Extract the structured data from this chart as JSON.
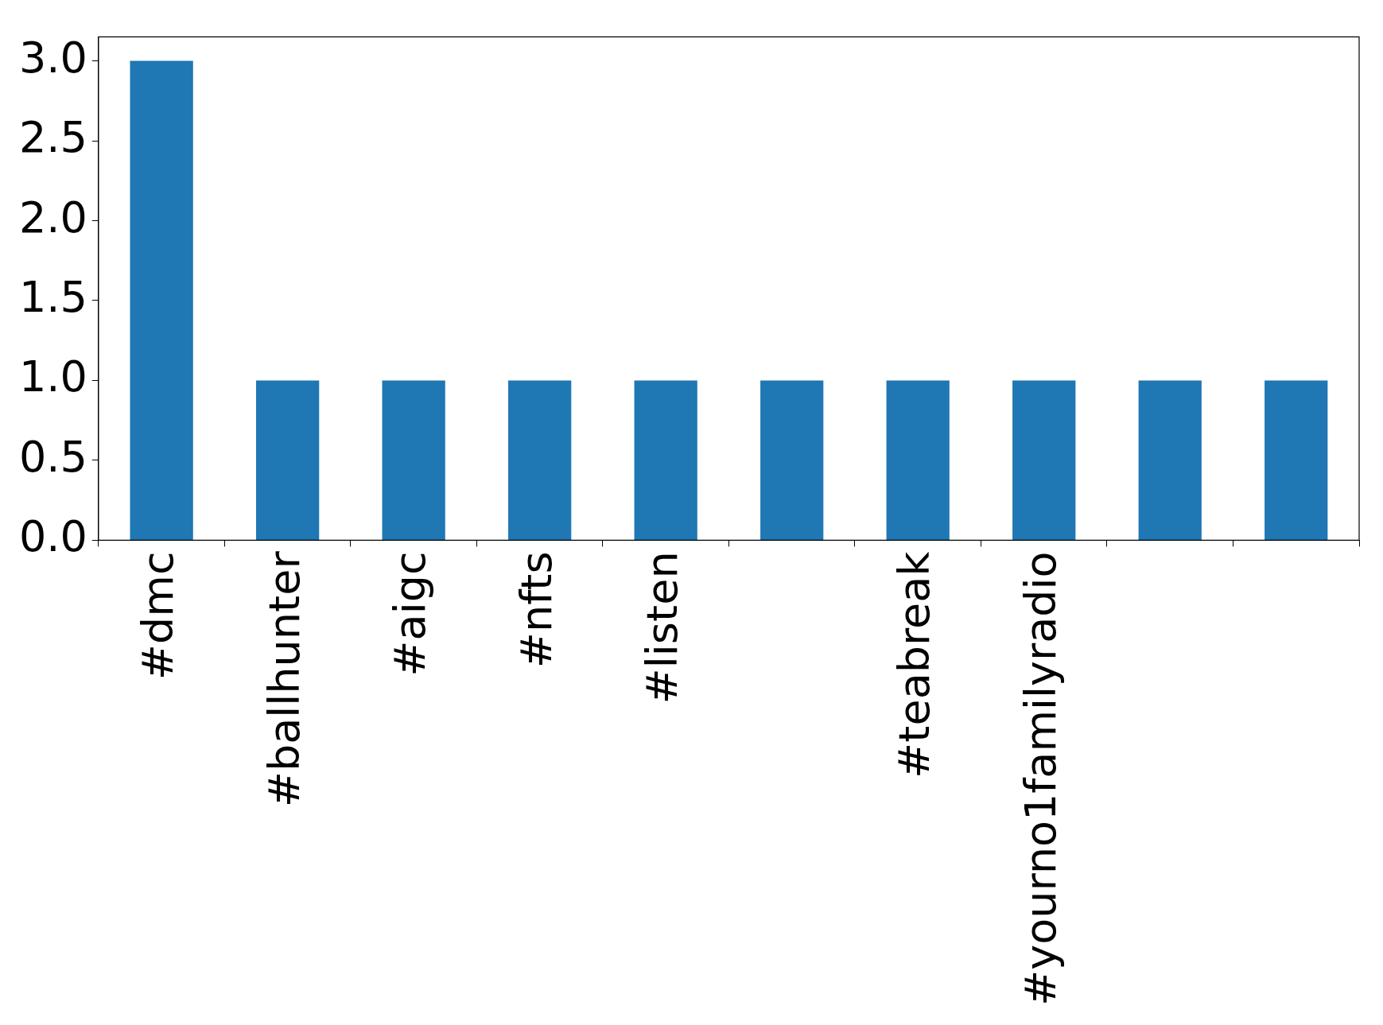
{
  "chart_data": {
    "type": "bar",
    "categories": [
      "#dmc",
      "#ballhunter",
      "#aigc",
      "#nfts",
      "#listen",
      null,
      "#teabreak",
      "#yourno1familyradio",
      null,
      null
    ],
    "values": [
      3,
      1,
      1,
      1,
      1,
      1,
      1,
      1,
      1,
      1
    ],
    "color": "#1f77b4",
    "ylim": [
      0,
      3.15
    ],
    "yticks": [
      {
        "value": 0,
        "label": "0.0"
      },
      0.5,
      {
        "value": 1,
        "label": "1.0"
      },
      1.5,
      {
        "value": 2,
        "label": "2.0"
      },
      2.5,
      {
        "value": 3,
        "label": "3.0"
      }
    ],
    "grid": false
  }
}
